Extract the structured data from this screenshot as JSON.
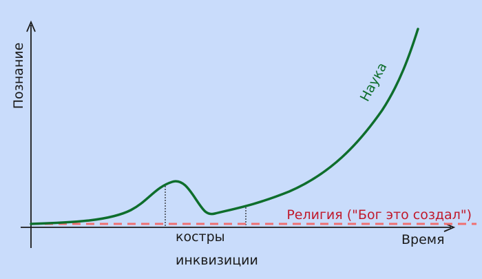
{
  "axes": {
    "y_label": "Познание",
    "x_label": "Время"
  },
  "curves": {
    "science": "Наука",
    "religion": "Религия (\"Бог это создал\")"
  },
  "annotation": {
    "lines": [
      "костры",
      "инквизиции"
    ]
  }
}
